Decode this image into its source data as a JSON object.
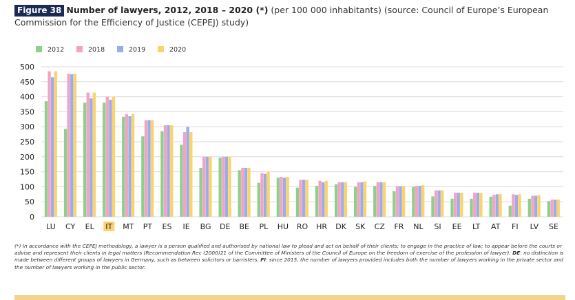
{
  "figure": {
    "label": "Figure 38",
    "title": "Number of lawyers, 2012, 2018 – 2020 (*)",
    "subtitle_line1": " (per 100 000 inhabitants) (source: Council of Europe’s European",
    "subtitle_line2": "Commission for the Efficiency of Justice (CEPEJ) study)"
  },
  "colors": {
    "2012": "#8ed08a",
    "2018": "#f4a3c4",
    "2019": "#99aee6",
    "2020": "#fbd36a",
    "highlight": "#fbd36a",
    "band": "#f3d48a"
  },
  "chart_data": {
    "type": "bar",
    "categories": [
      "LU",
      "CY",
      "EL",
      "IT",
      "MT",
      "PT",
      "ES",
      "IE",
      "BG",
      "DE",
      "BE",
      "PL",
      "HU",
      "RO",
      "HR",
      "DK",
      "SK",
      "CZ",
      "FR",
      "NL",
      "SI",
      "EE",
      "LT",
      "AT",
      "FI",
      "LV",
      "SE"
    ],
    "highlight_category": "IT",
    "series": [
      {
        "name": "2012",
        "values": [
          385,
          293,
          380,
          380,
          333,
          268,
          285,
          240,
          163,
          197,
          155,
          113,
          130,
          97,
          103,
          108,
          100,
          103,
          85,
          100,
          68,
          60,
          60,
          67,
          37,
          60,
          52
        ]
      },
      {
        "name": "2018",
        "values": [
          485,
          477,
          414,
          400,
          342,
          322,
          305,
          282,
          200,
          200,
          163,
          145,
          133,
          123,
          120,
          115,
          115,
          115,
          102,
          103,
          88,
          80,
          80,
          73,
          75,
          70,
          57
        ]
      },
      {
        "name": "2019",
        "values": [
          465,
          475,
          395,
          390,
          335,
          322,
          305,
          300,
          200,
          200,
          163,
          143,
          130,
          123,
          115,
          115,
          115,
          115,
          102,
          103,
          88,
          80,
          80,
          75,
          73,
          70,
          57
        ]
      },
      {
        "name": "2020",
        "values": [
          485,
          477,
          414,
          400,
          342,
          322,
          305,
          282,
          200,
          200,
          163,
          150,
          133,
          123,
          120,
          115,
          118,
          115,
          102,
          105,
          88,
          80,
          80,
          75,
          75,
          72,
          57
        ]
      }
    ],
    "ylim": [
      0,
      500
    ],
    "yticks": [
      0,
      50,
      100,
      150,
      200,
      250,
      300,
      350,
      400,
      450,
      500
    ],
    "grid": true,
    "legend_position": "top-left"
  },
  "footnote": {
    "intro": "(*) In accordance with the CEPEJ methodology, a lawyer is a person qualified and authorised by national law to plead and act on behalf of their clients; to engage in the practice of law; to appear before the courts or advise and represent their clients in legal matters (Recommendation Rec (2000)21 of the Committee of Ministers of the Council of Europe on the freedom of exercise of the profession of lawyer). ",
    "de_label": "DE",
    "de_text": ": no distinction is made between different groups of lawyers in Germany, such as between solicitors or barristers. ",
    "fi_label": "FI",
    "fi_text": ": since 2015, the number of lawyers provided includes both the number of lawyers working in the private sector and the number of lawyers working in the public sector."
  }
}
